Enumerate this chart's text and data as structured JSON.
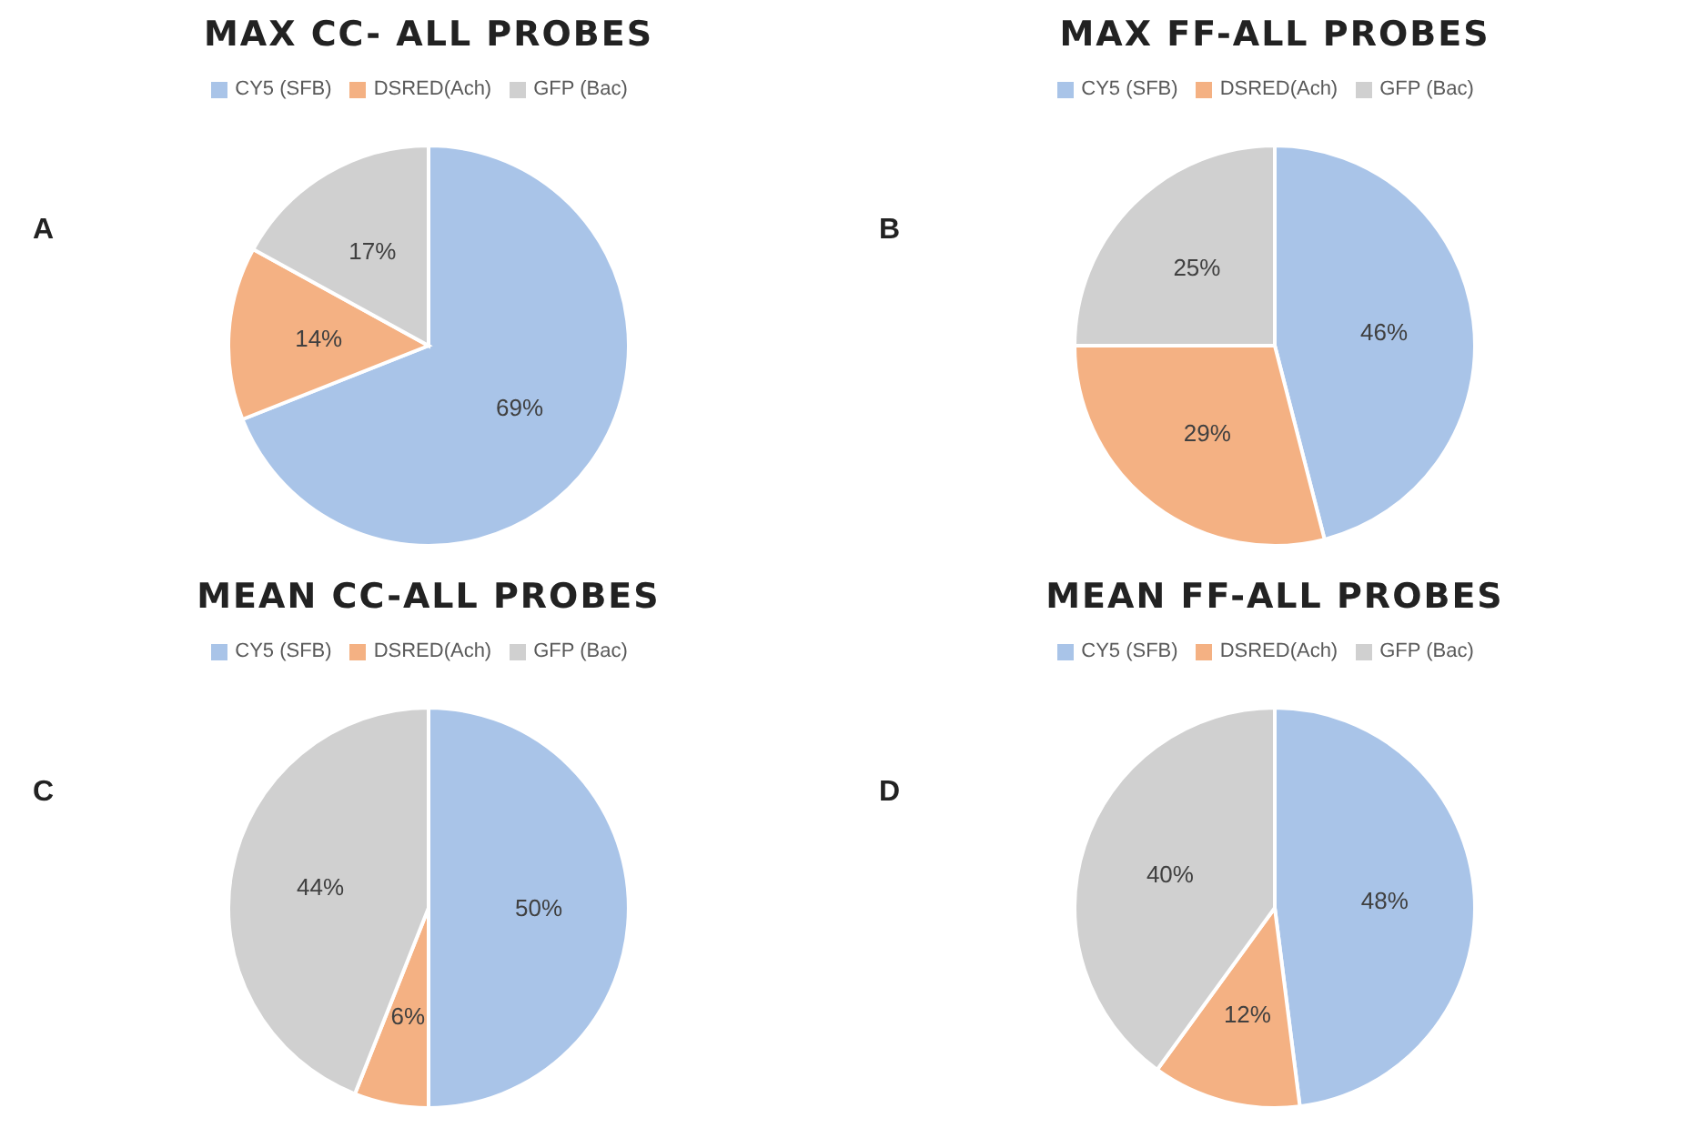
{
  "chart_data": [
    {
      "type": "pie",
      "title": "MAX CC- ALL PROBES",
      "annotations": [
        "A"
      ],
      "categories": [
        "CY5 (SFB)",
        "DSRED(Ach)",
        "GFP (Bac)"
      ],
      "values": [
        69,
        14,
        17
      ],
      "colors": [
        "#a9c4e8",
        "#f4b183",
        "#d0d0d0"
      ],
      "value_labels": [
        "69%",
        "14%",
        "17%"
      ],
      "legend": "top"
    },
    {
      "type": "pie",
      "title": "MAX FF-ALL PROBES",
      "annotations": [
        "B"
      ],
      "categories": [
        "CY5 (SFB)",
        "DSRED(Ach)",
        "GFP (Bac)"
      ],
      "values": [
        46,
        29,
        25
      ],
      "colors": [
        "#a9c4e8",
        "#f4b183",
        "#d0d0d0"
      ],
      "value_labels": [
        "46%",
        "29%",
        "25%"
      ],
      "legend": "top"
    },
    {
      "type": "pie",
      "title": "MEAN CC-ALL PROBES",
      "annotations": [
        "C"
      ],
      "categories": [
        "CY5 (SFB)",
        "DSRED(Ach)",
        "GFP (Bac)"
      ],
      "values": [
        50,
        6,
        44
      ],
      "colors": [
        "#a9c4e8",
        "#f4b183",
        "#d0d0d0"
      ],
      "value_labels": [
        "50%",
        "6%",
        "44%"
      ],
      "legend": "top"
    },
    {
      "type": "pie",
      "title": "MEAN FF-ALL PROBES",
      "annotations": [
        "D"
      ],
      "categories": [
        "CY5 (SFB)",
        "DSRED(Ach)",
        "GFP (Bac)"
      ],
      "values": [
        48,
        12,
        40
      ],
      "colors": [
        "#a9c4e8",
        "#f4b183",
        "#d0d0d0"
      ],
      "value_labels": [
        "48%",
        "12%",
        "40%"
      ],
      "legend": "top"
    }
  ]
}
